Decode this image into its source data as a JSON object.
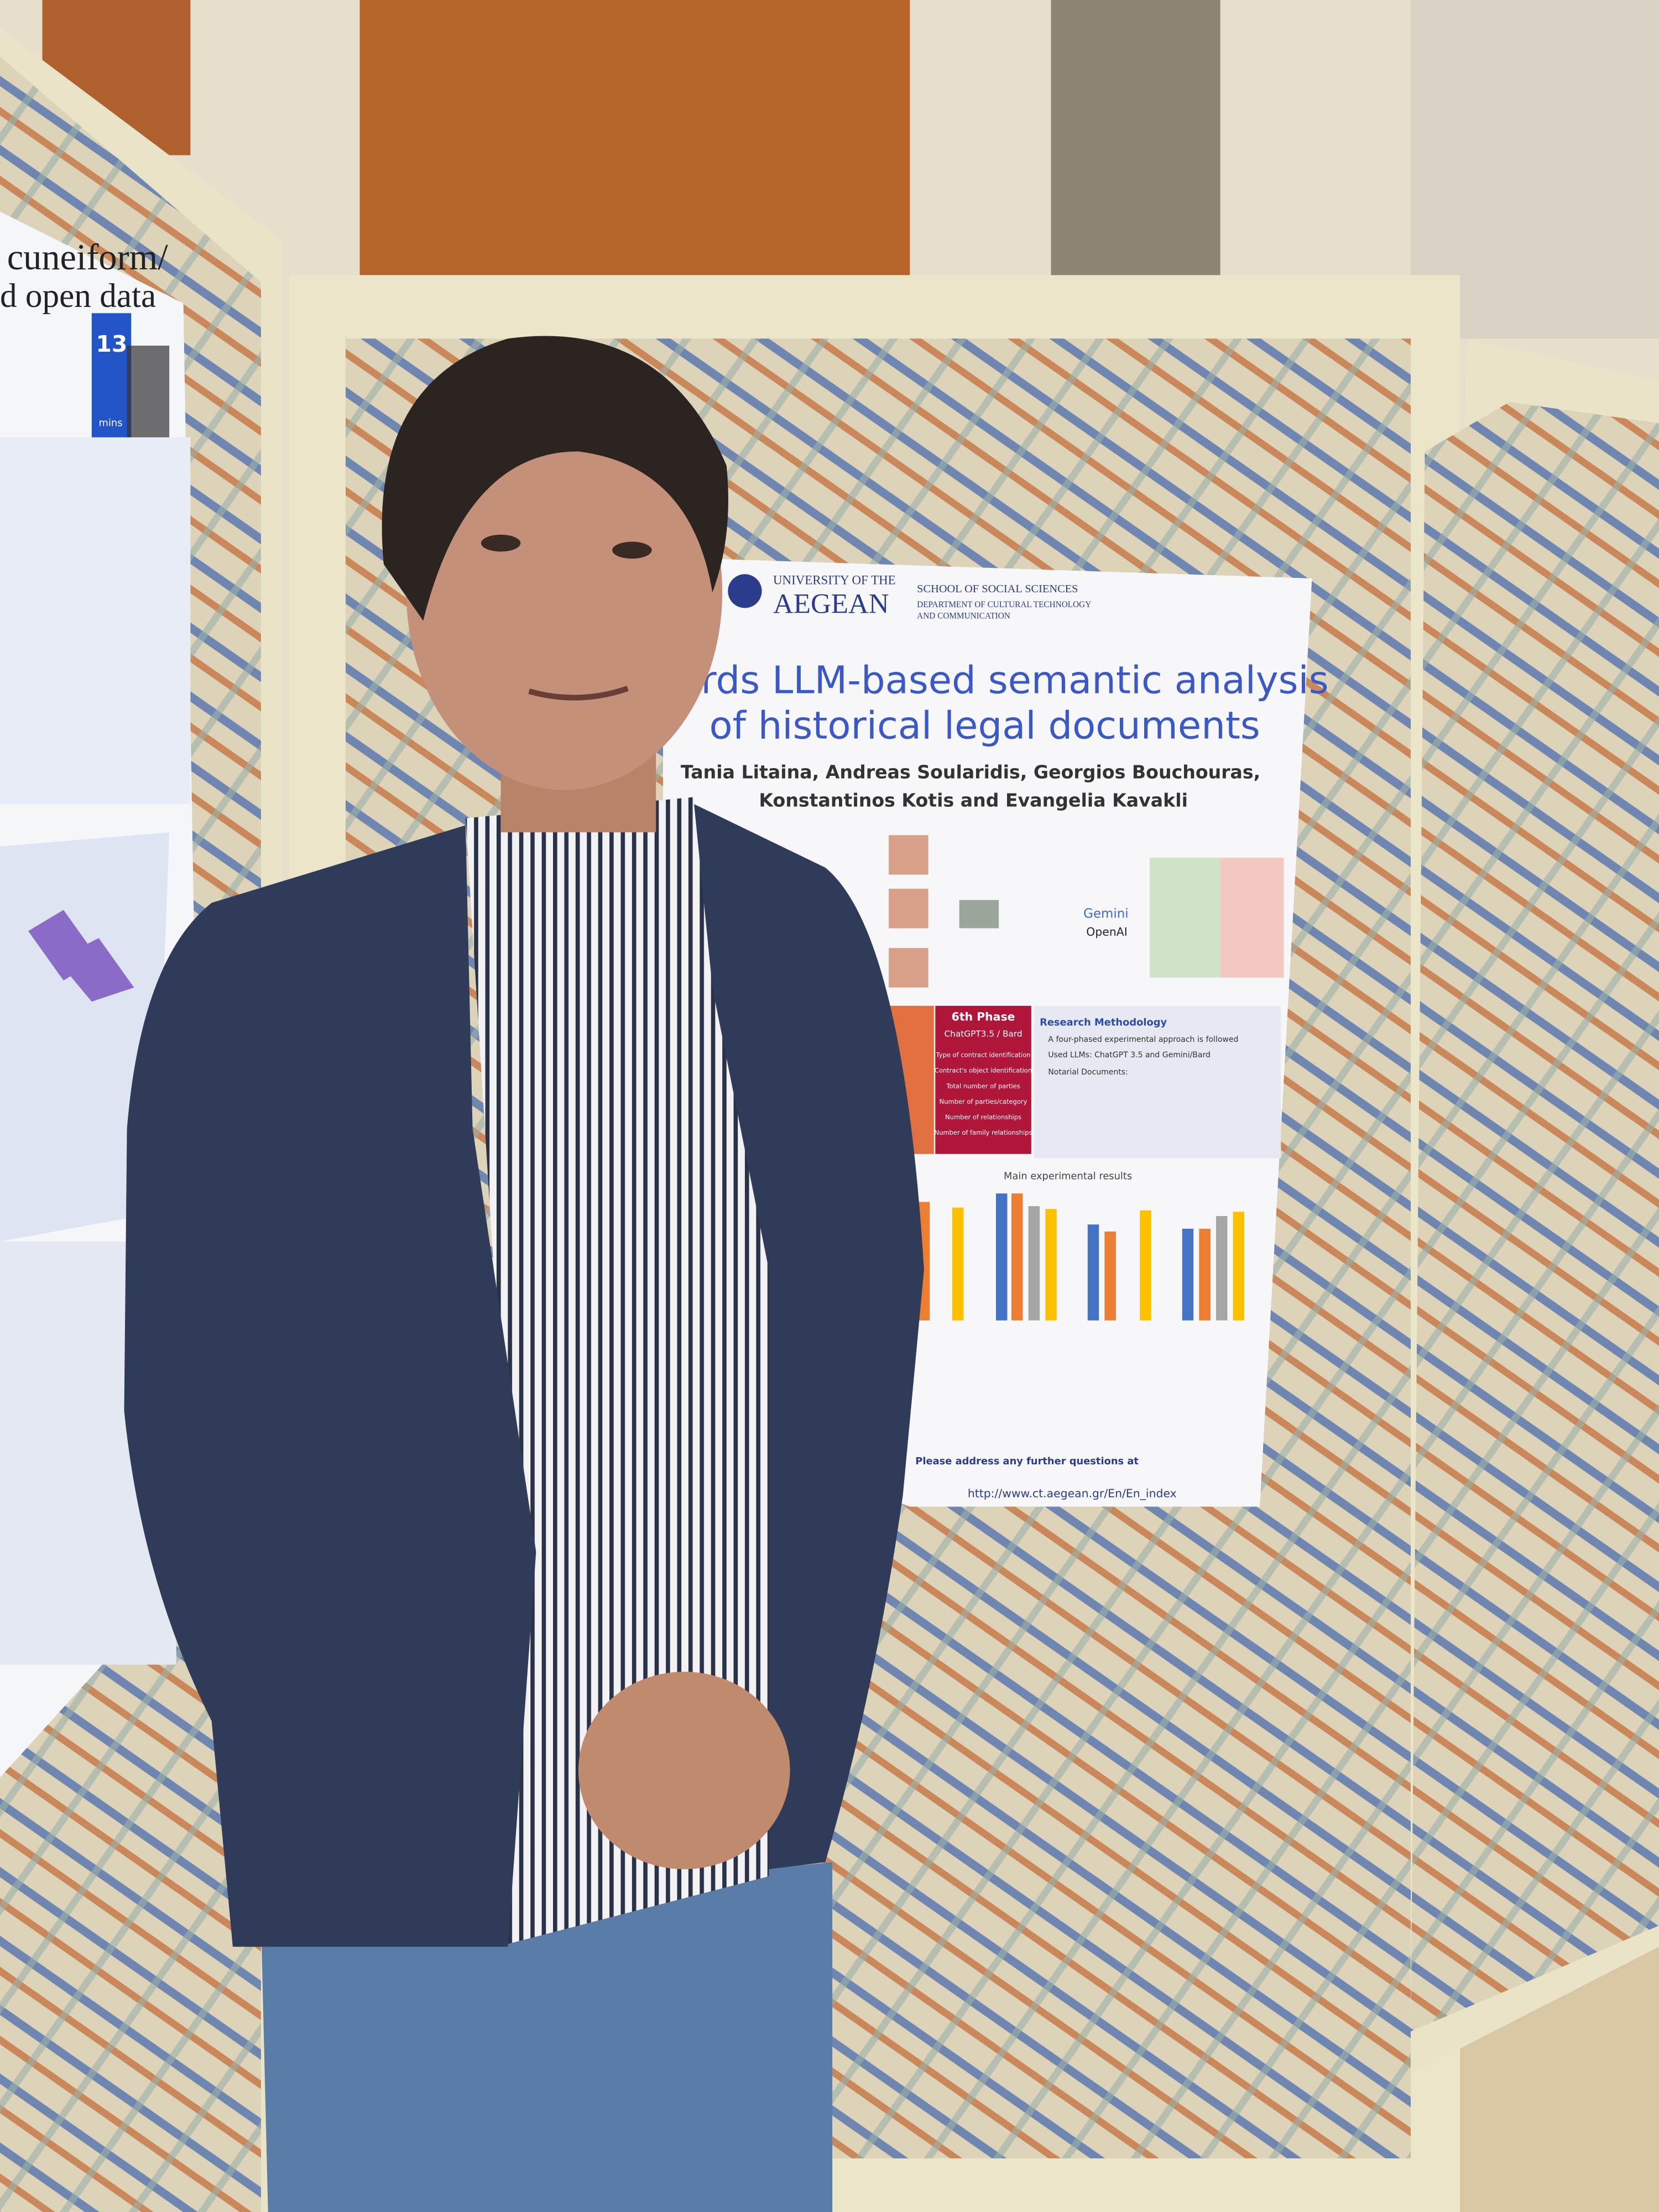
{
  "left_poster": {
    "title_1": "cuneiform/",
    "title_2": "d open data",
    "badge_number": "13",
    "badge_unit": "mins"
  },
  "poster": {
    "university_1": "UNIVERSITY OF THE",
    "university_2": "AEGEAN",
    "school": "SCHOOL OF SOCIAL SCIENCES",
    "department_1": "DEPARTMENT OF CULTURAL TECHNOLOGY",
    "department_2": "AND COMMUNICATION",
    "title_1": "wards LLM-based semantic analysis",
    "title_2": "of historical legal documents",
    "authors_1": "Tania Litaina, Andreas Soularidis, Georgios Bouchouras,",
    "authors_2": "Konstantinos Kotis and Evangelia Kavakli",
    "gemini": "Gemini",
    "openai": "OpenAI",
    "phase_label": "6th Phase",
    "phase_model": "ChatGPT3.5 / Bard",
    "phase_items": [
      "Type of contract identification",
      "Contract's object identification",
      "Total number of parties",
      "Number of parties/category",
      "Number of relationships",
      "Number of family relationships"
    ],
    "methodology_title": "Research Methodology",
    "methodology_items": [
      "A four-phased experimental approach is followed",
      "Used LLMs: ChatGPT 3.5 and Gemini/Bard",
      "Notarial Documents:"
    ],
    "results_title": "Main experimental results",
    "contact": "Please address any further questions at",
    "url": "http://www.ct.aegean.gr/En/En_index"
  }
}
